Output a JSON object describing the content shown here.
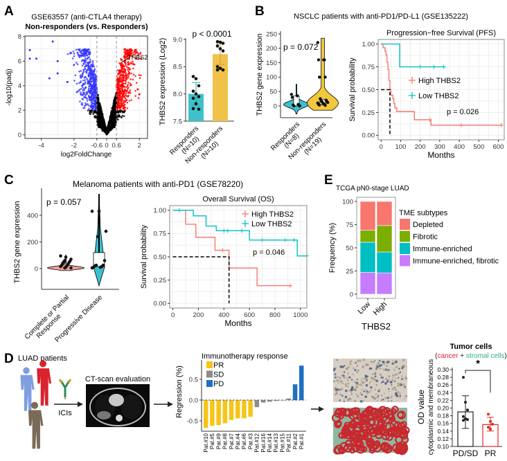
{
  "panel_labels": {
    "a": "A",
    "b": "B",
    "c": "C",
    "d": "D",
    "e": "E"
  },
  "text": {
    "a_title1": "GSE63557 (anti-CTLA4 therapy)",
    "a_title2": "Non-responders (vs. Responders)",
    "b_title": "NSCLC patients with anti-PD1/PD-L1 (GSE135222)",
    "c_title": "Melanoma patients with anti-PD1 (GSE78220)",
    "d_patients": "LUAD patients",
    "d_ct": "CT-scan evaluation",
    "d_icis": "ICIs"
  },
  "colors": {
    "red": "#f8766d",
    "teal": "#00bfc4",
    "gold": "#f5c518",
    "blue": "#1f6fc2",
    "gray": "#8c8c8c",
    "violin_teal": "#3bbfcf",
    "violin_gold": "#f2c83c",
    "bar_teal": "#3ec1c9",
    "bar_gold": "#f0c24a"
  },
  "chart_data": [
    {
      "type": "scatter",
      "name": "volcano",
      "xlabel": "log2FoldChange",
      "ylabel": "-log10(padj)",
      "xticks": [
        "-4",
        "-2",
        "-0.6",
        "0",
        "0.6",
        "2"
      ],
      "xtick_values": [
        -4,
        -2,
        -0.6,
        0,
        0.6,
        2
      ],
      "yticks": [
        "0",
        "2",
        "4",
        "6",
        "8"
      ],
      "ytick_values": [
        0,
        2,
        4,
        6,
        8
      ],
      "xlim": [
        -5,
        2.5
      ],
      "ylim": [
        -0.3,
        8.05
      ],
      "thresholds": {
        "log2fc": 0.6,
        "neg_log10_padj": 2
      },
      "colors": {
        "up": "#ff0000",
        "down": "#3333ff",
        "ns": "#000000"
      },
      "outliers": [
        [
          -4.7,
          6.9
        ],
        [
          -4.7,
          6.2
        ],
        [
          -4.3,
          6.2
        ],
        [
          -3.3,
          7.6
        ],
        [
          -3.0,
          6.0
        ],
        [
          -3.0,
          5.0
        ],
        [
          -3.5,
          4.6
        ],
        [
          -2.4,
          4.3
        ],
        [
          2.1,
          6.2
        ],
        [
          1.9,
          3.7
        ],
        [
          2.0,
          3.3
        ]
      ],
      "label": {
        "text": "THBS2",
        "x": 0.9,
        "y": 5.9
      }
    },
    {
      "type": "bar",
      "name": "thbs2-gse63557",
      "title": "p < 0.0001",
      "ylabel": "THBS2 expression (Log2)",
      "categories": [
        "Responders\n(N=10)",
        "Non-responders\n(N=10)"
      ],
      "category_lines": [
        [
          "Responders",
          "(N=10)"
        ],
        [
          "Non-responders",
          "(N=10)"
        ]
      ],
      "values": [
        8.0,
        8.73
      ],
      "sd": [
        0.21,
        0.19
      ],
      "points": [
        [
          8.32,
          8.28,
          8.15,
          8.05,
          8.0,
          7.95,
          7.92,
          7.82,
          7.72,
          7.73
        ],
        [
          8.96,
          8.95,
          8.93,
          8.88,
          8.83,
          8.79,
          8.5,
          8.47,
          8.44,
          8.44
        ]
      ],
      "yticks": [
        "7.5",
        "8.0",
        "8.5",
        "9.0"
      ],
      "ytick_values": [
        7.5,
        8.0,
        8.5,
        9.0
      ],
      "ylim": [
        7.5,
        9.0
      ]
    },
    {
      "type": "violin",
      "name": "thbs2-gse135222",
      "annotation": "p = 0.072",
      "ylabel": "THBS2 gene expression",
      "category_lines": [
        [
          "Responders",
          "(N=8)"
        ],
        [
          "Non-responders",
          "(N=19)"
        ]
      ],
      "points": [
        [
          40,
          35,
          30,
          5,
          3,
          2,
          0,
          0
        ],
        [
          220,
          160,
          160,
          160,
          100,
          100,
          25,
          20,
          18,
          15,
          15,
          12,
          10,
          10,
          8,
          5,
          5,
          3,
          2
        ]
      ],
      "ranges": [
        [
          -28,
          75
        ],
        [
          -15,
          235
        ]
      ],
      "yticks": [
        "0",
        "50",
        "100",
        "150",
        "200",
        "250"
      ],
      "ytick_values": [
        0,
        50,
        100,
        150,
        200,
        250
      ]
    },
    {
      "type": "line",
      "name": "km-pfs",
      "title": "Progression−free Survival (PFS)",
      "xlabel": "Months",
      "ylabel": "Survival probability",
      "annotation": "p = 0.026",
      "xticks": [
        "0",
        "100",
        "200",
        "300",
        "400",
        "500",
        "600"
      ],
      "xtick_values": [
        0,
        100,
        200,
        300,
        400,
        500,
        600
      ],
      "yticks": [
        "0.00",
        "0.25",
        "0.50",
        "0.75",
        "1.00"
      ],
      "ytick_values": [
        0,
        0.25,
        0.5,
        0.75,
        1.0
      ],
      "xlim": [
        -15,
        630
      ],
      "ylim": [
        -0.05,
        1.05
      ],
      "median_line": 45,
      "series": [
        {
          "name": "High THBS2",
          "color": "#f8766d",
          "steps": [
            [
              0,
              1.0
            ],
            [
              10,
              0.96
            ],
            [
              20,
              0.92
            ],
            [
              25,
              0.88
            ],
            [
              30,
              0.8
            ],
            [
              35,
              0.72
            ],
            [
              40,
              0.6
            ],
            [
              45,
              0.5
            ],
            [
              50,
              0.44
            ],
            [
              60,
              0.4
            ],
            [
              65,
              0.35
            ],
            [
              70,
              0.3
            ],
            [
              80,
              0.26
            ],
            [
              170,
              0.17
            ],
            [
              255,
              0.11
            ],
            [
              620,
              0.11
            ]
          ],
          "censor": [
            250,
            410,
            615
          ]
        },
        {
          "name": "Low THBS2",
          "color": "#00bfc4",
          "steps": [
            [
              0,
              1.0
            ],
            [
              95,
              0.75
            ],
            [
              330,
              0.75
            ]
          ],
          "censor": [
            200,
            270,
            320
          ]
        }
      ]
    },
    {
      "type": "violin",
      "name": "thbs2-gse78220",
      "annotation": "p = 0.057",
      "ylabel": "THBS2 gene expression",
      "category_lines": [
        [
          "Complete or Partial",
          "Response"
        ],
        [
          "Progressive Disease"
        ]
      ],
      "points": [
        [
          95,
          85,
          70,
          60,
          55,
          50,
          45,
          40,
          30,
          25,
          20,
          15,
          10,
          5,
          5
        ],
        [
          430,
          430,
          280,
          240,
          60,
          25,
          25,
          20,
          15,
          10,
          10,
          5
        ]
      ],
      "ranges": [
        [
          -15,
          100
        ],
        [
          -130,
          560
        ]
      ],
      "yticks": [
        "0",
        "200",
        "400"
      ],
      "ytick_values": [
        0,
        200,
        400
      ]
    },
    {
      "type": "line",
      "name": "km-os",
      "title": "Overall Survival (OS)",
      "xlabel": "Months",
      "ylabel": "Survival probability",
      "annotation": "p = 0.046",
      "xticks": [
        "0",
        "200",
        "400",
        "600",
        "800",
        "1000"
      ],
      "xtick_values": [
        0,
        200,
        400,
        600,
        800,
        1000
      ],
      "yticks": [
        "0.00",
        "0.25",
        "0.50",
        "0.75",
        "1.00"
      ],
      "ytick_values": [
        0,
        0.25,
        0.5,
        0.75,
        1.0
      ],
      "xlim": [
        -25,
        1050
      ],
      "ylim": [
        -0.05,
        1.05
      ],
      "median_line": 440,
      "series": [
        {
          "name": "High THBS2",
          "color": "#f8766d",
          "steps": [
            [
              0,
              1.0
            ],
            [
              100,
              0.85
            ],
            [
              180,
              0.71
            ],
            [
              330,
              0.57
            ],
            [
              440,
              0.38
            ],
            [
              660,
              0.19
            ],
            [
              920,
              0.19
            ]
          ],
          "censor": [
            390,
            920
          ]
        },
        {
          "name": "Low THBS2",
          "color": "#00bfc4",
          "steps": [
            [
              0,
              1.0
            ],
            [
              160,
              0.94
            ],
            [
              260,
              0.83
            ],
            [
              340,
              0.78
            ],
            [
              600,
              0.68
            ],
            [
              975,
              0.51
            ],
            [
              1050,
              0.51
            ]
          ],
          "censor": [
            50,
            400,
            430,
            540,
            700,
            880,
            950,
            1050
          ]
        }
      ]
    },
    {
      "type": "bar",
      "name": "tme-stacked",
      "title": "TCGA pN0-stage LUAD",
      "xlabel": "THBS2",
      "ylabel": "Frequency (%)",
      "categories": [
        "Low",
        "High"
      ],
      "legend_title": "TME subtypes",
      "yticks": [
        "0",
        "25",
        "50",
        "75",
        "100"
      ],
      "ytick_values": [
        0,
        25,
        50,
        75,
        100
      ],
      "ylim": [
        0,
        100
      ],
      "series": [
        {
          "name": "Immune-enriched, fibrotic",
          "color": "#c77cff",
          "values": [
            23.5,
            23
          ]
        },
        {
          "name": "Immune-enriched",
          "color": "#00bfc4",
          "values": [
            32.5,
            22.5
          ]
        },
        {
          "name": "Fibrotic",
          "color": "#7cae00",
          "values": [
            13,
            28.5
          ]
        },
        {
          "name": "Depleted",
          "color": "#f8766d",
          "values": [
            31,
            26
          ]
        }
      ],
      "legend_order": [
        3,
        2,
        1,
        0
      ]
    },
    {
      "type": "bar",
      "name": "waterfall",
      "title": "Immunotherapy response",
      "ylabel": "Regression (%)",
      "categories": [
        "Pat.#10",
        "Pat.#5",
        "Pat.#9",
        "Pat.#8",
        "Pat.#7",
        "Pat.#4",
        "Pat.#6",
        "Pat.#3",
        "Pat.#12",
        "Pat.#16",
        "Pat.#14",
        "Pat.#13",
        "Pat.#15",
        "Pat.#11",
        "Pat.#2",
        "Pat.#1"
      ],
      "values": [
        -0.67,
        -0.62,
        -0.6,
        -0.56,
        -0.48,
        -0.44,
        -0.44,
        -0.4,
        -0.17,
        -0.06,
        -0.04,
        -0.02,
        -0.01,
        0.04,
        0.38,
        0.83
      ],
      "groups": [
        "PR",
        "PR",
        "PR",
        "PR",
        "PR",
        "PR",
        "PR",
        "PR",
        "SD",
        "SD",
        "SD",
        "SD",
        "SD",
        "SD",
        "PD",
        "PD"
      ],
      "legend": [
        {
          "name": "PR",
          "color": "#f5c518"
        },
        {
          "name": "SD",
          "color": "#8c8c8c"
        },
        {
          "name": "PD",
          "color": "#1f6fc2"
        }
      ],
      "yticks": [
        "-0.5",
        "0.0",
        "0.5"
      ],
      "ytick_values": [
        -0.5,
        0,
        0.5
      ]
    },
    {
      "type": "bar",
      "name": "od-value",
      "title": "Tumor cells",
      "subtitle_parts": [
        "(",
        "cancer",
        " + ",
        "stromal cells",
        ")"
      ],
      "ylabel": "OD value",
      "ylabel2": "cytoplasmic and membraneous",
      "categories": [
        "PD/SD",
        "PR"
      ],
      "values": [
        0.19,
        0.157
      ],
      "error": [
        [
          0.147,
          0.232
        ],
        [
          0.14,
          0.176
        ]
      ],
      "points": [
        [
          0.28,
          0.215,
          0.195,
          0.178,
          0.172,
          0.17,
          0.168
        ],
        [
          0.184,
          0.165,
          0.158,
          0.15,
          0.145
        ]
      ],
      "significance": "*",
      "yticks": [
        "0.10",
        "0.12",
        "0.14",
        "0.16",
        "0.18",
        "0.20",
        "0.22",
        "0.24",
        "0.26",
        "0.28",
        "0.30"
      ],
      "ytick_values": [
        0.1,
        0.12,
        0.14,
        0.16,
        0.18,
        0.2,
        0.22,
        0.24,
        0.26,
        0.28,
        0.3
      ],
      "ylim": [
        0.1,
        0.3
      ]
    }
  ]
}
